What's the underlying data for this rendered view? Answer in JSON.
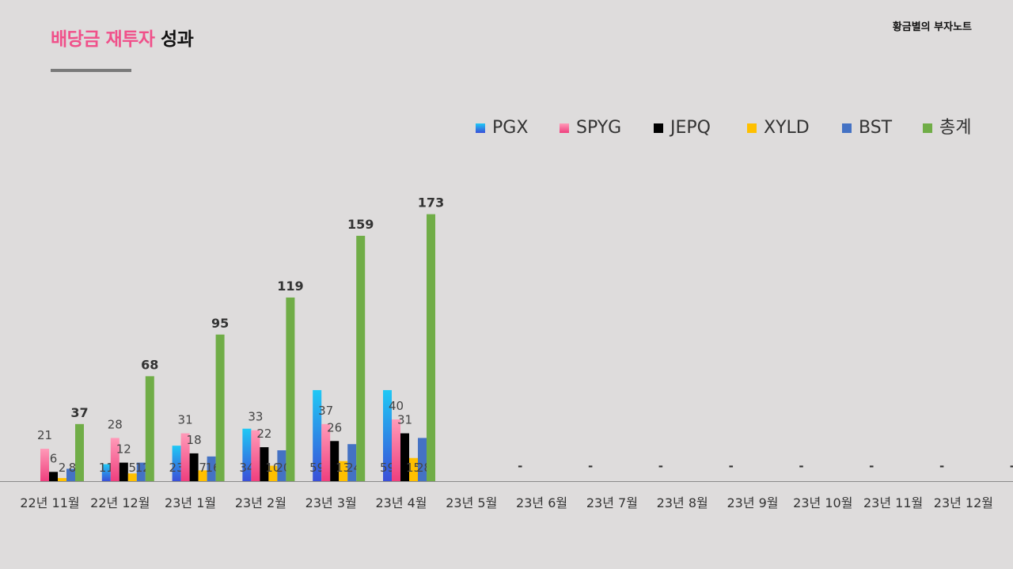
{
  "header": {
    "title_accent": "배당금 재투자",
    "title_rest": "성과",
    "brand": "황금별의 부자노트"
  },
  "chart_data": {
    "type": "bar",
    "categories": [
      "22년 11월",
      "22년 12월",
      "23년 1월",
      "23년 2월",
      "23년 3월",
      "23년 4월",
      "23년 5월",
      "23년 6월",
      "23년 7월",
      "23년 8월",
      "23년 9월",
      "23년 10월",
      "23년 11월",
      "23년 12월"
    ],
    "series": [
      {
        "name": "PGX",
        "color": "#1fc8f5",
        "color2": "#3a4fd8",
        "values": [
          0,
          11,
          23,
          34,
          59,
          59,
          null,
          null,
          null,
          null,
          null,
          null,
          null,
          null
        ]
      },
      {
        "name": "SPYG",
        "color": "#ff9ab8",
        "color2": "#ef3f7e",
        "values": [
          21,
          28,
          31,
          33,
          37,
          40,
          null,
          null,
          null,
          null,
          null,
          null,
          null,
          null
        ]
      },
      {
        "name": "JEPQ",
        "color": "#000000",
        "values": [
          6,
          12,
          18,
          22,
          26,
          31,
          null,
          null,
          null,
          null,
          null,
          null,
          null,
          null
        ]
      },
      {
        "name": "XYLD",
        "color": "#ffc000",
        "values": [
          2,
          5,
          7,
          10,
          13,
          15,
          null,
          null,
          null,
          null,
          null,
          null,
          null,
          null
        ]
      },
      {
        "name": "BST",
        "color": "#4472c4",
        "values": [
          8,
          12,
          16,
          20,
          24,
          28,
          null,
          null,
          null,
          null,
          null,
          null,
          null,
          null
        ]
      },
      {
        "name": "총계",
        "color": "#70ad47",
        "values": [
          37,
          68,
          95,
          119,
          159,
          173,
          null,
          null,
          null,
          null,
          null,
          null,
          null,
          null
        ]
      }
    ],
    "empty_marker": "-",
    "legend_position": "top-right",
    "xlabel": "",
    "ylabel": "",
    "ylim": [
      0,
      200
    ]
  }
}
